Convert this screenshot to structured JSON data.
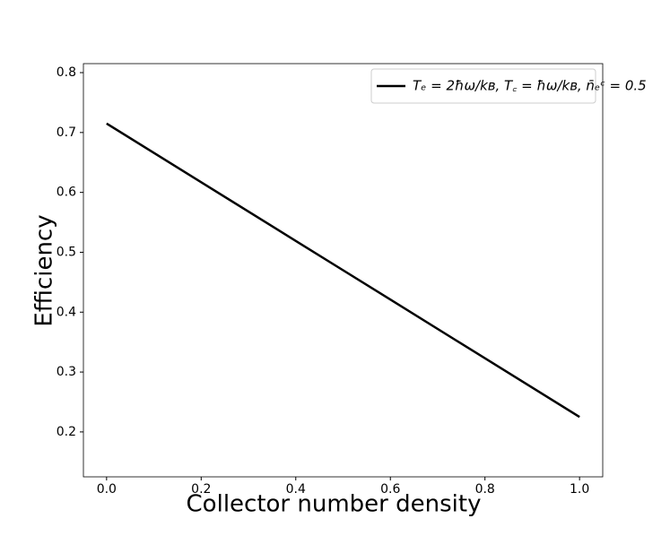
{
  "chart_data": {
    "type": "line",
    "x_label": "Collector number density",
    "y_label": "Efficiency",
    "x": [
      0,
      0.2,
      0.4,
      0.6,
      0.8,
      1.0
    ],
    "series": [
      {
        "name": "Tₑ = 2ħω/kʙ, T꜀ = ħω/kʙ, n̄ₑᶜ = 0.5",
        "color": "#000000",
        "values": [
          0.715,
          0.617,
          0.519,
          0.421,
          0.323,
          0.225
        ]
      }
    ],
    "xlim": [
      -0.049,
      1.049
    ],
    "ylim": [
      0.125,
      0.815
    ],
    "xticks": [
      {
        "value": 0,
        "label": "0.0"
      },
      0.2,
      0.4,
      0.6,
      0.8,
      {
        "value": 1.0,
        "label": "1.0"
      }
    ],
    "yticks": [
      0.2,
      0.3,
      0.4,
      0.5,
      0.6,
      0.7,
      0.8
    ],
    "grid": false,
    "legend": "upper right"
  }
}
